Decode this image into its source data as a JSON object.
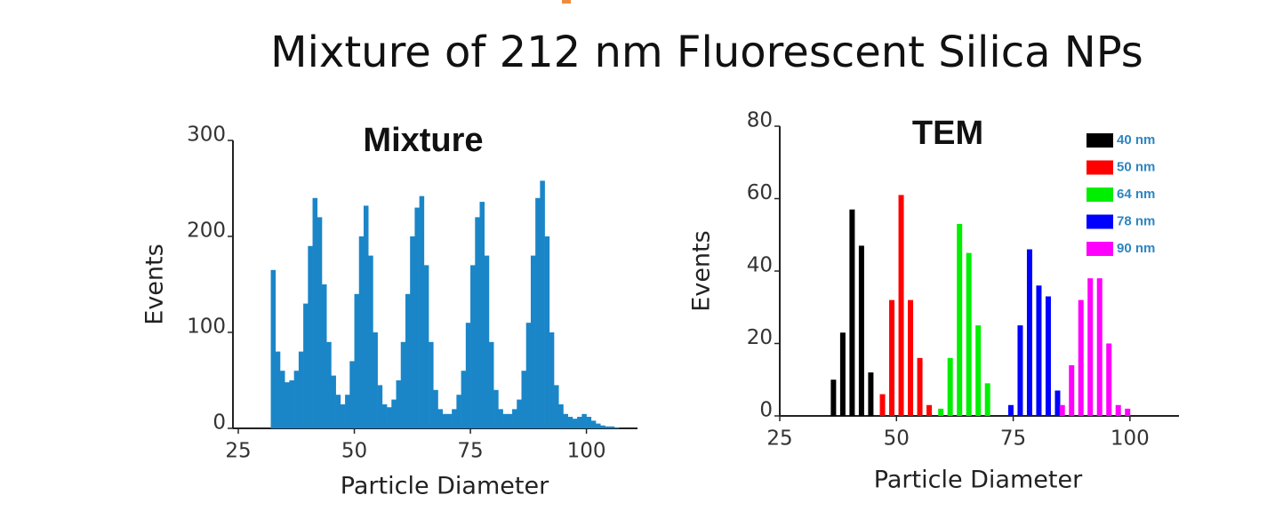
{
  "title": "Mixture of 212 nm Fluorescent Silica NPs",
  "chart_data": [
    {
      "type": "histogram",
      "title": "Mixture",
      "xlabel": "Particle Diameter",
      "ylabel": "Events",
      "color": "#1a86c8",
      "bins": [
        32,
        33,
        34,
        35,
        36,
        37,
        38,
        39,
        40,
        41,
        42,
        43,
        44,
        45,
        46,
        47,
        48,
        49,
        50,
        51,
        52,
        53,
        54,
        55,
        56,
        57,
        58,
        59,
        60,
        61,
        62,
        63,
        64,
        65,
        66,
        67,
        68,
        69,
        70,
        71,
        72,
        73,
        74,
        75,
        76,
        77,
        78,
        79,
        80,
        81,
        82,
        83,
        84,
        85,
        86,
        87,
        88,
        89,
        90,
        91,
        92,
        93,
        94,
        95,
        96,
        97,
        98,
        99,
        100,
        101,
        102,
        103,
        104,
        105,
        106,
        107
      ],
      "values": [
        165,
        80,
        60,
        48,
        50,
        60,
        80,
        130,
        190,
        240,
        220,
        150,
        90,
        55,
        35,
        25,
        35,
        70,
        140,
        200,
        232,
        180,
        100,
        45,
        25,
        22,
        30,
        50,
        90,
        140,
        200,
        230,
        242,
        170,
        90,
        40,
        20,
        15,
        15,
        20,
        35,
        60,
        110,
        170,
        220,
        236,
        180,
        90,
        40,
        20,
        15,
        15,
        20,
        30,
        60,
        110,
        180,
        240,
        258,
        200,
        100,
        45,
        25,
        15,
        12,
        10,
        12,
        15,
        12,
        8,
        5,
        3,
        2,
        2,
        1
      ],
      "xlim": [
        25,
        111
      ],
      "xticks": [
        25,
        50,
        75,
        100
      ],
      "ylim": [
        0,
        300
      ],
      "yticks": [
        0,
        100,
        200,
        300
      ]
    },
    {
      "type": "bar",
      "title": "TEM",
      "xlabel": "Particle Diameter",
      "ylabel": "Events",
      "legend": "upper right",
      "series": [
        {
          "name": "40 nm",
          "color": "#000000",
          "x": [
            36.5,
            38.5,
            40.5,
            42.5,
            44.5
          ],
          "values": [
            10,
            23,
            57,
            47,
            12
          ]
        },
        {
          "name": "50 nm",
          "color": "#ff0000",
          "x": [
            47,
            49,
            51,
            53,
            55,
            57
          ],
          "values": [
            6,
            32,
            61,
            32,
            16,
            3
          ]
        },
        {
          "name": "64 nm",
          "color": "#00ee00",
          "x": [
            59.5,
            61.5,
            63.5,
            65.5,
            67.5,
            69.5
          ],
          "values": [
            2,
            16,
            53,
            45,
            25,
            9
          ]
        },
        {
          "name": "78 nm",
          "color": "#0000ff",
          "x": [
            74.5,
            76.5,
            78.5,
            80.5,
            82.5,
            84.5
          ],
          "values": [
            3,
            25,
            46,
            36,
            33,
            7
          ]
        },
        {
          "name": "90 nm",
          "color": "#ff00ff",
          "x": [
            85.5,
            87.5,
            89.5,
            91.5,
            93.5,
            95.5,
            97.5,
            99.5
          ],
          "values": [
            3,
            14,
            32,
            38,
            38,
            20,
            3,
            2
          ]
        }
      ],
      "xlim": [
        25,
        110.5
      ],
      "xticks": [
        25,
        50,
        75,
        100
      ],
      "ylim": [
        0,
        80
      ],
      "yticks": [
        0,
        20,
        40,
        60,
        80
      ]
    }
  ]
}
